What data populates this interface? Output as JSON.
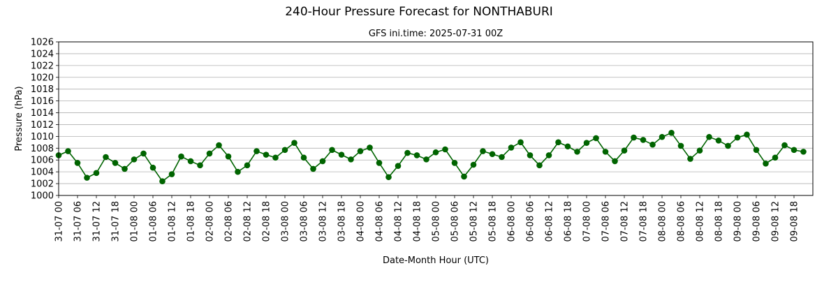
{
  "chart_data": {
    "type": "line",
    "title": "240-Hour Pressure Forecast for NONTHABURI",
    "subtitle": "GFS ini.time: 2025-07-31 00Z",
    "xlabel": "Date-Month Hour (UTC)",
    "ylabel": "Pressure (hPa)",
    "ylim": [
      1000,
      1026
    ],
    "y_ticks": [
      1000,
      1002,
      1004,
      1006,
      1008,
      1010,
      1012,
      1014,
      1016,
      1018,
      1020,
      1022,
      1024,
      1026
    ],
    "x_ticks": [
      "31-07 00",
      "31-07 06",
      "31-07 12",
      "31-07 18",
      "01-08 00",
      "01-08 06",
      "01-08 12",
      "01-08 18",
      "02-08 00",
      "02-08 06",
      "02-08 12",
      "02-08 18",
      "03-08 00",
      "03-08 06",
      "03-08 12",
      "03-08 18",
      "04-08 00",
      "04-08 06",
      "04-08 12",
      "04-08 18",
      "05-08 00",
      "05-08 06",
      "05-08 12",
      "05-08 18",
      "06-08 00",
      "06-08 06",
      "06-08 12",
      "06-08 18",
      "07-08 00",
      "07-08 06",
      "07-08 12",
      "07-08 18",
      "08-08 00",
      "08-08 06",
      "08-08 12",
      "08-08 18",
      "09-08 00",
      "09-08 06",
      "09-08 12",
      "09-08 18"
    ],
    "x_step_hours": 3,
    "grid": "horizontal",
    "line_color": "#006400",
    "series": [
      {
        "values": [
          1006.8,
          1007.5,
          1005.5,
          1003.0,
          1003.8,
          1006.5,
          1005.5,
          1004.5,
          1006.1,
          1007.1,
          1004.7,
          1002.4,
          1003.6,
          1006.6,
          1005.8,
          1005.1,
          1007.1,
          1008.5,
          1006.6,
          1004.0,
          1005.1,
          1007.5,
          1006.9,
          1006.4,
          1007.7,
          1008.9,
          1006.4,
          1004.5,
          1005.8,
          1007.7,
          1006.9,
          1006.1,
          1007.5,
          1008.1,
          1005.5,
          1003.1,
          1005.0,
          1007.2,
          1006.8,
          1006.1,
          1007.3,
          1007.8,
          1005.5,
          1003.2,
          1005.2,
          1007.5,
          1007.0,
          1006.5,
          1008.1,
          1009.0,
          1006.8,
          1005.1,
          1006.8,
          1009.0,
          1008.3,
          1007.4,
          1008.9,
          1009.7,
          1007.4,
          1005.8,
          1007.6,
          1009.8,
          1009.4,
          1008.6,
          1009.9,
          1010.6,
          1008.4,
          1006.2,
          1007.6,
          1009.9,
          1009.3,
          1008.4,
          1009.8,
          1010.3,
          1007.7,
          1005.4,
          1006.4,
          1008.5,
          1007.7,
          1007.4
        ]
      }
    ]
  }
}
